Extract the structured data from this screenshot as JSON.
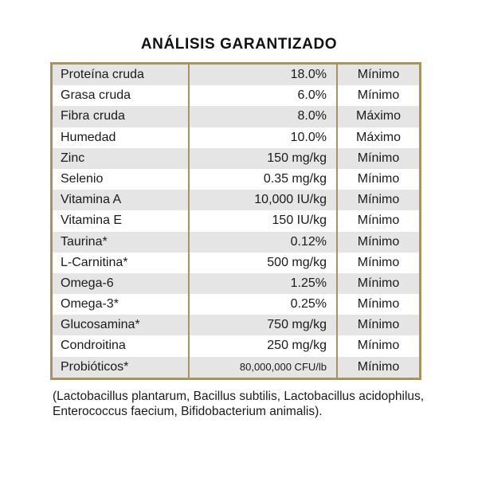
{
  "title": "ANÁLISIS GARANTIZADO",
  "table": {
    "rows": [
      {
        "nutrient": "Proteína cruda",
        "value": "18.0%",
        "basis": "Mínimo"
      },
      {
        "nutrient": "Grasa cruda",
        "value": "6.0%",
        "basis": "Mínimo"
      },
      {
        "nutrient": "Fibra cruda",
        "value": "8.0%",
        "basis": "Máximo"
      },
      {
        "nutrient": "Humedad",
        "value": "10.0%",
        "basis": "Máximo"
      },
      {
        "nutrient": "Zinc",
        "value": "150 mg/kg",
        "basis": "Mínimo"
      },
      {
        "nutrient": "Selenio",
        "value": "0.35 mg/kg",
        "basis": "Mínimo"
      },
      {
        "nutrient": "Vitamina A",
        "value": "10,000 IU/kg",
        "basis": "Mínimo"
      },
      {
        "nutrient": "Vitamina E",
        "value": "150 IU/kg",
        "basis": "Mínimo"
      },
      {
        "nutrient": "Taurina*",
        "value": "0.12%",
        "basis": "Mínimo"
      },
      {
        "nutrient": "L-Carnitina*",
        "value": "500 mg/kg",
        "basis": "Mínimo"
      },
      {
        "nutrient": "Omega-6",
        "value": "1.25%",
        "basis": "Mínimo"
      },
      {
        "nutrient": "Omega-3*",
        "value": "0.25%",
        "basis": "Mínimo"
      },
      {
        "nutrient": "Glucosamina*",
        "value": "750 mg/kg",
        "basis": "Mínimo"
      },
      {
        "nutrient": "Condroitina",
        "value": "250 mg/kg",
        "basis": "Mínimo"
      },
      {
        "nutrient": "Probióticos*",
        "value": "80,000,000 CFU/lb",
        "basis": "Mínimo"
      }
    ]
  },
  "footnote": "(Lactobacillus plantarum, Bacillus subtilis, Lactobacillus acidophilus, Enterococcus faecium, Bifidobacterium animalis).",
  "colors": {
    "border_gold": "#a6945e",
    "row_shade": "#e5e5e5",
    "text": "#1a1a1a",
    "background": "#ffffff"
  }
}
